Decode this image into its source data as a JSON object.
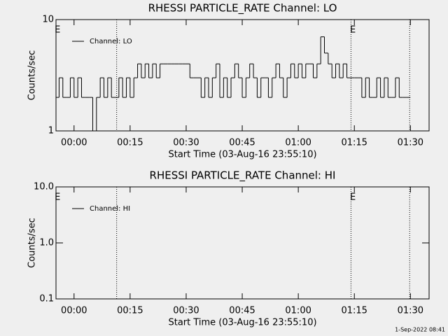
{
  "chart_data": [
    {
      "type": "line",
      "title": "RHESSI PARTICLE_RATE Channel: LO",
      "xlabel": "Start Time (03-Aug-16 23:55:10)",
      "ylabel": "Counts/sec",
      "log_y": true,
      "step": true,
      "legend": "upper left",
      "xlim": [
        -4.83,
        95
      ],
      "ylim": [
        1,
        10
      ],
      "xticks": [
        {
          "value": 0,
          "label": "00:00"
        },
        {
          "value": 15,
          "label": "00:15"
        },
        {
          "value": 30,
          "label": "00:30"
        },
        {
          "value": 45,
          "label": "00:45"
        },
        {
          "value": 60,
          "label": "01:00"
        },
        {
          "value": 75,
          "label": "01:15"
        },
        {
          "value": 90,
          "label": "01:30"
        }
      ],
      "yticks": [
        1,
        10
      ],
      "vlines": [
        11.4,
        74.1,
        89.8
      ],
      "annotations": [
        {
          "x": -4.4,
          "text": "E"
        },
        {
          "x": 74.6,
          "text": "E"
        }
      ],
      "series": [
        {
          "name": "Channel: LO",
          "color": "#000000",
          "x": [
            -4.8,
            -4,
            -3,
            -2,
            -1,
            0,
            1,
            2,
            3,
            4,
            5,
            6,
            7,
            8,
            9,
            10,
            11,
            12,
            13,
            14,
            15,
            16,
            17,
            18,
            19,
            20,
            21,
            22,
            23,
            24,
            25,
            26,
            27,
            28,
            29,
            30,
            31,
            32,
            33,
            34,
            35,
            36,
            37,
            38,
            39,
            40,
            41,
            42,
            43,
            44,
            45,
            46,
            47,
            48,
            49,
            50,
            51,
            52,
            53,
            54,
            55,
            56,
            57,
            58,
            59,
            60,
            61,
            62,
            63,
            64,
            65,
            66,
            67,
            68,
            69,
            70,
            71,
            72,
            73,
            74,
            75,
            76,
            77,
            78,
            79,
            80,
            81,
            82,
            83,
            84,
            85,
            86,
            87,
            88,
            89
          ],
          "values": [
            2,
            3,
            2,
            2,
            3,
            2,
            3,
            2,
            2,
            2,
            1,
            2,
            3,
            2,
            3,
            2,
            2,
            3,
            2,
            3,
            2,
            3,
            4,
            3,
            4,
            3,
            4,
            3,
            4,
            4,
            4,
            4,
            4,
            4,
            4,
            4,
            3,
            3,
            3,
            2,
            3,
            2,
            3,
            4,
            2,
            3,
            2,
            3,
            4,
            3,
            2,
            3,
            4,
            3,
            2,
            3,
            3,
            2,
            3,
            4,
            3,
            2,
            3,
            4,
            3,
            4,
            3,
            4,
            4,
            3,
            4,
            7,
            5,
            4,
            3,
            4,
            3,
            4,
            3,
            3,
            3,
            3,
            2,
            3,
            2,
            2,
            3,
            2,
            3,
            2,
            2,
            3,
            2,
            2,
            2
          ]
        }
      ]
    },
    {
      "type": "line",
      "title": "RHESSI PARTICLE_RATE Channel: HI",
      "xlabel": "Start Time (03-Aug-16 23:55:10)",
      "ylabel": "Counts/sec",
      "log_y": true,
      "step": true,
      "legend": "upper left",
      "xlim": [
        -4.83,
        95
      ],
      "ylim": [
        0.1,
        10
      ],
      "xticks": [
        {
          "value": 0,
          "label": "00:00"
        },
        {
          "value": 15,
          "label": "00:15"
        },
        {
          "value": 30,
          "label": "00:30"
        },
        {
          "value": 45,
          "label": "00:45"
        },
        {
          "value": 60,
          "label": "01:00"
        },
        {
          "value": 75,
          "label": "01:15"
        },
        {
          "value": 90,
          "label": "01:30"
        }
      ],
      "yticks": [
        0.1,
        {
          "value": 1,
          "label": "1.0"
        },
        {
          "value": 10,
          "label": "10.0"
        }
      ],
      "vlines": [
        11.4,
        74.1,
        89.8
      ],
      "annotations": [
        {
          "x": -4.4,
          "text": "E"
        },
        {
          "x": 74.6,
          "text": "E"
        }
      ],
      "series": [
        {
          "name": "Channel: HI",
          "color": "#000000",
          "x": [],
          "values": []
        }
      ]
    }
  ],
  "footer": "1-Sep-2022 08:41"
}
